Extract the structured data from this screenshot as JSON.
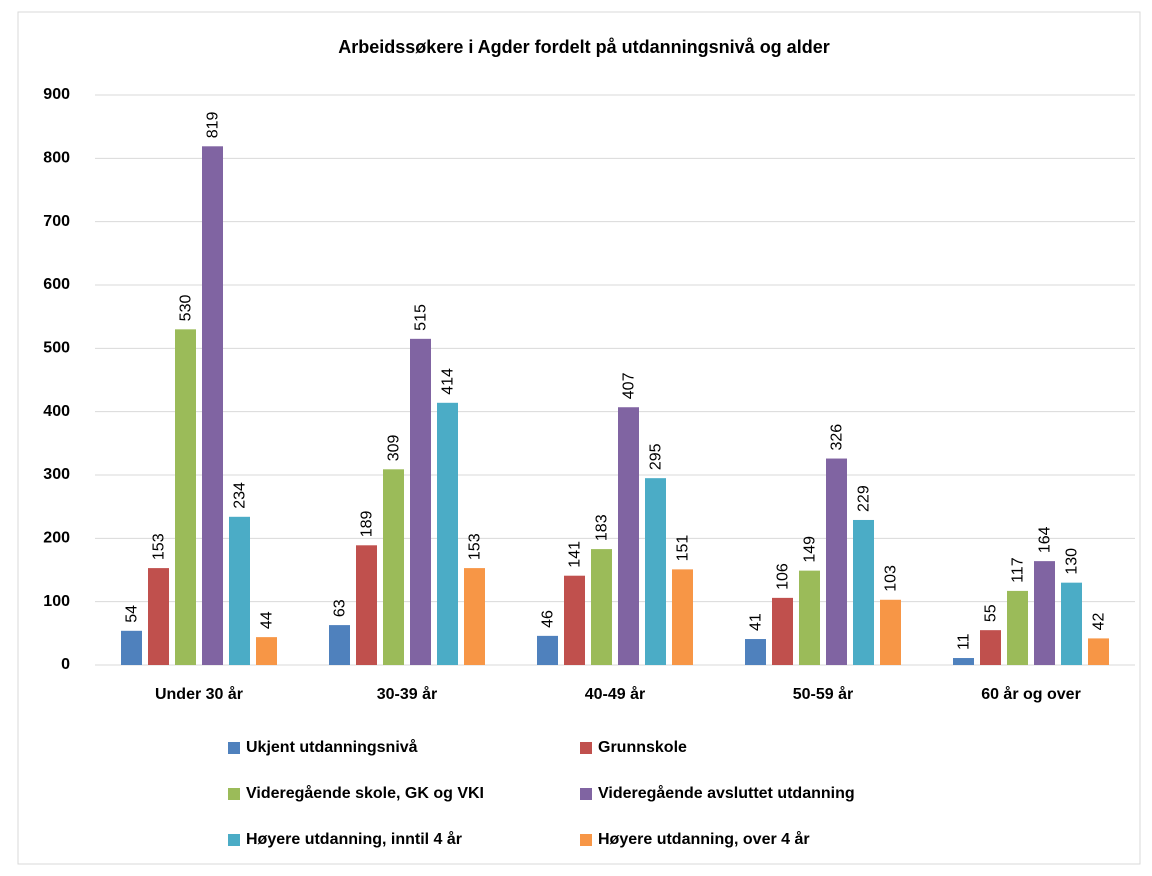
{
  "chart_data": {
    "type": "bar",
    "title": "Arbeidssøkere i Agder fordelt på utdanningsnivå og alder",
    "categories": [
      "Under 30 år",
      "30-39 år",
      "40-49 år",
      "50-59 år",
      "60 år og over"
    ],
    "series": [
      {
        "name": "Ukjent utdanningsnivå",
        "color": "#4f81bd",
        "values": [
          54,
          63,
          46,
          41,
          11
        ]
      },
      {
        "name": "Grunnskole",
        "color": "#c0504d",
        "values": [
          153,
          189,
          141,
          106,
          55
        ]
      },
      {
        "name": "Videregående skole, GK og VKI",
        "color": "#9bbb59",
        "values": [
          530,
          309,
          183,
          149,
          117
        ]
      },
      {
        "name": "Videregående avsluttet utdanning",
        "color": "#8064a2",
        "values": [
          819,
          515,
          407,
          326,
          164
        ]
      },
      {
        "name": "Høyere utdanning, inntil 4 år",
        "color": "#4bacc6",
        "values": [
          234,
          414,
          295,
          229,
          130
        ]
      },
      {
        "name": "Høyere utdanning, over 4 år",
        "color": "#f79646",
        "values": [
          44,
          153,
          151,
          103,
          42
        ]
      }
    ],
    "ylim": [
      0,
      900
    ],
    "yticks": [
      0,
      100,
      200,
      300,
      400,
      500,
      600,
      700,
      800,
      900
    ],
    "grid": true,
    "legend": "bottom"
  }
}
